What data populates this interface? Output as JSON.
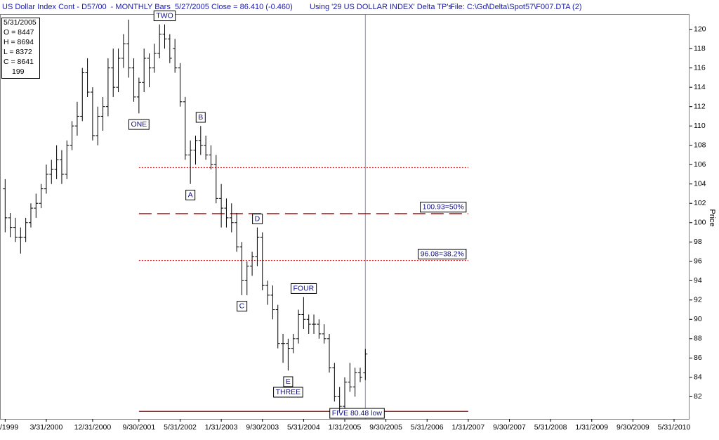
{
  "header": {
    "left": "US Dollar Index Cont - D57/00  - MONTHLY Bars  5/27/2005 Close = 86.410 (-0.460)",
    "middle": "Using '29 US DOLLAR INDEX' Delta TP's",
    "right": "File: C:\\Gd\\Delta\\Spot57\\F007.DTA (2)"
  },
  "info": {
    "lines": [
      "5/31/2005",
      "O = 8447",
      "H = 8694",
      "L = 8372",
      "C = 8641",
      "199"
    ]
  },
  "chart_data": {
    "type": "ohlc",
    "ylabel": "Price",
    "color": "#000000",
    "x": [
      "1999-07",
      "1999-08",
      "1999-09",
      "1999-10",
      "1999-11",
      "1999-12",
      "2000-01",
      "2000-02",
      "2000-03",
      "2000-04",
      "2000-05",
      "2000-06",
      "2000-07",
      "2000-08",
      "2000-09",
      "2000-10",
      "2000-11",
      "2000-12",
      "2001-01",
      "2001-02",
      "2001-03",
      "2001-04",
      "2001-05",
      "2001-06",
      "2001-07",
      "2001-08",
      "2001-09",
      "2001-10",
      "2001-11",
      "2001-12",
      "2002-01",
      "2002-02",
      "2002-03",
      "2002-04",
      "2002-05",
      "2002-06",
      "2002-07",
      "2002-08",
      "2002-09",
      "2002-10",
      "2002-11",
      "2002-12",
      "2003-01",
      "2003-02",
      "2003-03",
      "2003-04",
      "2003-05",
      "2003-06",
      "2003-07",
      "2003-08",
      "2003-09",
      "2003-10",
      "2003-11",
      "2003-12",
      "2004-01",
      "2004-02",
      "2004-03",
      "2004-04",
      "2004-05",
      "2004-06",
      "2004-07",
      "2004-08",
      "2004-09",
      "2004-10",
      "2004-11",
      "2004-12",
      "2005-01",
      "2005-02",
      "2005-03",
      "2005-04",
      "2005-05"
    ],
    "open": [
      103.5,
      100.5,
      99.5,
      98.5,
      98.5,
      100,
      101.5,
      102,
      103.5,
      105,
      105.5,
      106.5,
      105,
      108,
      110,
      111,
      115.5,
      113.5,
      109,
      111,
      112,
      116,
      114,
      117,
      118.5,
      116,
      113,
      114.5,
      117,
      116,
      117.5,
      119.5,
      119,
      118,
      116,
      112.5,
      107,
      107.5,
      108.5,
      108,
      107,
      106,
      102.5,
      101.5,
      100.5,
      100,
      97.5,
      94,
      95.5,
      96.5,
      98.5,
      93.5,
      92.5,
      91,
      87.5,
      87.5,
      87,
      88,
      90.5,
      90,
      89.5,
      89.5,
      88.5,
      88,
      85,
      82,
      81,
      83.5,
      83,
      84.5,
      84.47
    ],
    "high": [
      104.5,
      101,
      100.5,
      99.5,
      100.5,
      102,
      103,
      104,
      106,
      106.5,
      108,
      107.5,
      108.5,
      110.5,
      112.5,
      116,
      117,
      114,
      112,
      113,
      117,
      118,
      118,
      119.5,
      121,
      117,
      115,
      118,
      117.5,
      118.5,
      120.5,
      120.5,
      119.5,
      119,
      116.5,
      113,
      108.5,
      109,
      110,
      109,
      108,
      107,
      104,
      102.5,
      102,
      101,
      98,
      96,
      97,
      99.5,
      99,
      94,
      93.5,
      91.5,
      88.5,
      88,
      88.5,
      91,
      92.3,
      90.5,
      90.5,
      90,
      89.5,
      88.5,
      85.5,
      83,
      84,
      85.5,
      85,
      85,
      86.94
    ],
    "low": [
      99,
      98.5,
      98,
      96.8,
      98,
      99.5,
      100.5,
      101.5,
      103,
      104,
      104.5,
      104,
      104.5,
      107.5,
      109,
      110.5,
      113,
      108.5,
      108,
      109.5,
      111,
      113,
      113.5,
      116,
      115,
      112.5,
      111.3,
      113.5,
      114,
      115.5,
      117,
      118,
      116.5,
      115.5,
      112,
      106.5,
      104,
      106,
      107,
      106.5,
      105.5,
      102,
      99.5,
      99.5,
      99,
      97,
      92.5,
      92.5,
      94.5,
      95.5,
      93,
      91.5,
      90,
      87,
      85.5,
      84.7,
      86.5,
      87.5,
      89,
      88.5,
      88.5,
      88,
      87.5,
      84.5,
      81.5,
      80.48,
      80.8,
      82.5,
      82,
      83.5,
      83.72
    ],
    "close": [
      100.5,
      99.5,
      98.5,
      98.5,
      100,
      101.5,
      102,
      103.5,
      105,
      105.5,
      106.5,
      105,
      108,
      110,
      111,
      115.5,
      113.5,
      109,
      111,
      112,
      116,
      114,
      117,
      118.5,
      116,
      113,
      114.5,
      117,
      116,
      117.5,
      119.5,
      119,
      117,
      116,
      112.5,
      107,
      107.5,
      108.5,
      108,
      107,
      106,
      102.5,
      101.5,
      100.5,
      100,
      97.5,
      94,
      95.5,
      96.5,
      98.5,
      93.5,
      92.5,
      91,
      87.5,
      87.5,
      87,
      88,
      90.5,
      90,
      89.5,
      89.5,
      88.5,
      88,
      85,
      82,
      81,
      83.5,
      83,
      84.5,
      84,
      86.41
    ],
    "xlim": [
      "1999-06",
      "2010-08"
    ],
    "xticks": [
      {
        "value": "1999-07",
        "label": "/1999"
      },
      {
        "value": "2000-03",
        "label": "3/31/2000"
      },
      {
        "value": "2000-12",
        "label": "12/31/2000"
      },
      {
        "value": "2001-09",
        "label": "9/30/2001"
      },
      {
        "value": "2002-05",
        "label": "5/31/2002"
      },
      {
        "value": "2003-01",
        "label": "1/31/2003"
      },
      {
        "value": "2003-09",
        "label": "9/30/2003"
      },
      {
        "value": "2004-05",
        "label": "5/31/2004"
      },
      {
        "value": "2005-01",
        "label": "1/31/2005"
      },
      {
        "value": "2005-09",
        "label": "9/30/2005"
      },
      {
        "value": "2006-05",
        "label": "5/31/2006"
      },
      {
        "value": "2007-01",
        "label": "1/31/2007"
      },
      {
        "value": "2007-09",
        "label": "9/30/2007"
      },
      {
        "value": "2008-05",
        "label": "5/31/2008"
      },
      {
        "value": "2009-01",
        "label": "1/31/2009"
      },
      {
        "value": "2009-09",
        "label": "9/30/2009"
      },
      {
        "value": "2010-05",
        "label": "5/31/2010"
      }
    ],
    "ylim": [
      79.7,
      121.5
    ],
    "yticks": [
      82,
      84,
      86,
      88,
      90,
      92,
      94,
      96,
      98,
      100,
      102,
      104,
      106,
      108,
      110,
      112,
      114,
      116,
      118,
      120
    ],
    "levels_span": [
      "2001-09",
      "2007-01"
    ],
    "levels": [
      {
        "value": 105.7,
        "style": "dotted",
        "color": "#cc0000"
      },
      {
        "value": 100.93,
        "style": "dashed",
        "color": "#aa0000",
        "label": "100.93=50%"
      },
      {
        "value": 96.08,
        "style": "dotted",
        "color": "#cc0000",
        "label": "96.08=38.2%"
      },
      {
        "value": 80.48,
        "style": "solid",
        "color": "#aa0000",
        "label": "FIVE 80.48 low"
      }
    ],
    "cursor_x": "2005-05",
    "annotations": [
      {
        "text": "ONE",
        "x": "2001-09",
        "position": "below"
      },
      {
        "text": "TWO",
        "x": "2002-02",
        "position": "above"
      },
      {
        "text": "A",
        "x": "2002-07",
        "position": "below"
      },
      {
        "text": "B",
        "x": "2002-09",
        "position": "above"
      },
      {
        "text": "C",
        "x": "2003-05",
        "position": "below"
      },
      {
        "text": "D",
        "x": "2003-08",
        "position": "above"
      },
      {
        "text": "E",
        "x": "2004-02",
        "position": "below"
      },
      {
        "text": "THREE",
        "x": "2004-02",
        "position": "below"
      },
      {
        "text": "FOUR",
        "x": "2004-05",
        "position": "above"
      }
    ]
  }
}
